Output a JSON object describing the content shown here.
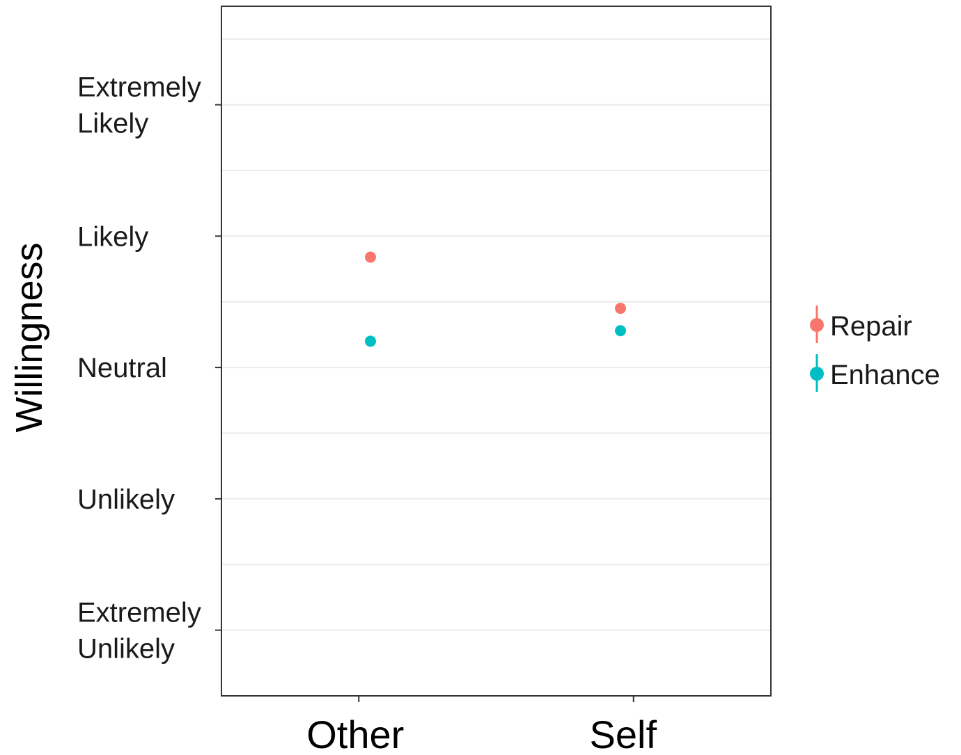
{
  "chart_data": {
    "type": "scatter",
    "title": "",
    "xlabel": "",
    "ylabel": "Willingness",
    "categories": [
      "Other",
      "Self"
    ],
    "y_ticks": [
      {
        "value": 1,
        "label": [
          "Extremely",
          "Unlikely"
        ]
      },
      {
        "value": 2,
        "label": [
          "Unlikely"
        ]
      },
      {
        "value": 3,
        "label": [
          "Neutral"
        ]
      },
      {
        "value": 4,
        "label": [
          "Likely"
        ]
      },
      {
        "value": 5,
        "label": [
          "Extremely",
          "Likely"
        ]
      }
    ],
    "ylim": [
      0.5,
      5.75
    ],
    "grid": true,
    "legend_position": "right",
    "series": [
      {
        "name": "Repair",
        "color": "#F8766D",
        "values": [
          3.84,
          3.45
        ],
        "error": [
          0.04,
          0.04
        ]
      },
      {
        "name": "Enhance",
        "color": "#00BFC4",
        "values": [
          3.2,
          3.28
        ],
        "error": [
          0.04,
          0.04
        ]
      }
    ]
  }
}
